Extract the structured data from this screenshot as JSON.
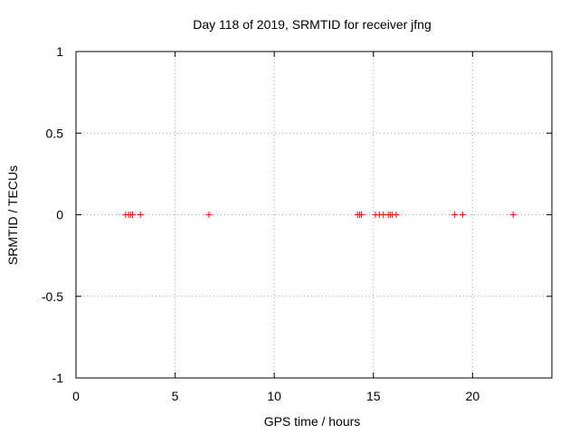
{
  "chart_data": {
    "type": "scatter",
    "title": "Day 118 of 2019, SRMTID for receiver jfng",
    "xlabel": "GPS time / hours",
    "ylabel": "SRMTID / TECUs",
    "xlim": [
      0,
      24
    ],
    "ylim": [
      -1,
      1
    ],
    "xticks": [
      0,
      5,
      10,
      15,
      20
    ],
    "xtick_labels": [
      "0",
      "5",
      "10",
      "15",
      "20"
    ],
    "yticks": [
      -1,
      -0.5,
      0,
      0.5,
      1
    ],
    "ytick_labels": [
      "-1",
      "-0.5",
      "0",
      "0.5",
      "1"
    ],
    "grid": true,
    "marker": "+",
    "colors": {
      "points": "#ff0000",
      "grid": "#a0a0a0",
      "axes": "#000000"
    },
    "series": [
      {
        "name": "SRMTID",
        "x": [
          2.5,
          2.65,
          2.75,
          2.85,
          3.25,
          6.7,
          14.2,
          14.3,
          14.4,
          15.1,
          15.3,
          15.5,
          15.75,
          15.85,
          15.95,
          16.15,
          19.1,
          19.5,
          22.05
        ],
        "y": [
          0,
          0,
          0,
          0,
          0,
          0,
          0,
          0,
          0,
          0,
          0,
          0,
          0,
          0,
          0,
          0,
          0,
          0,
          0
        ]
      }
    ]
  }
}
